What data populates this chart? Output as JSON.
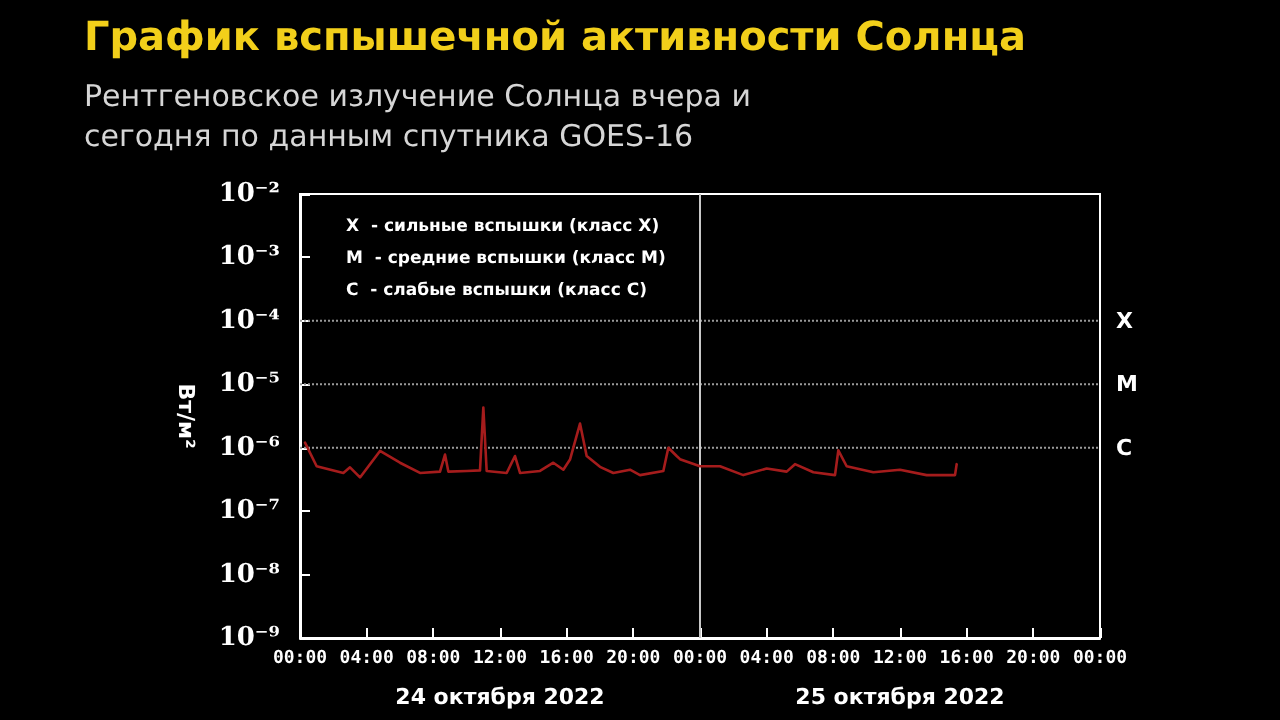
{
  "chart_data": {
    "type": "line",
    "title": "График вспышечной активности Солнца",
    "subtitle": "Рентгеновское излучение Солнца вчера и сегодня по данным спутника GOES-16",
    "ylabel": "Вт/м²",
    "log": "y",
    "grid": false,
    "marker": "none",
    "line_style": "solid",
    "annotations": [
      "X  - сильные вспышки (класс X)",
      "M  - средние вспышки (класс M)",
      "C  - слабые вспышки (класс C)",
      "24 октября 2022",
      "25 октября 2022"
    ],
    "xlim": [
      "2022-10-24T00:00",
      "2022-10-26T00:00"
    ],
    "ylim": [
      1e-09,
      0.01
    ],
    "xticks": [
      {
        "value": "2022-10-24T00:00",
        "label": "00:00"
      },
      {
        "value": "2022-10-24T04:00",
        "label": "04:00"
      },
      {
        "value": "2022-10-24T08:00",
        "label": "08:00"
      },
      {
        "value": "2022-10-24T12:00",
        "label": "12:00"
      },
      {
        "value": "2022-10-24T16:00",
        "label": "16:00"
      },
      {
        "value": "2022-10-24T20:00",
        "label": "20:00"
      },
      {
        "value": "2022-10-25T00:00",
        "label": "00:00"
      },
      {
        "value": "2022-10-25T04:00",
        "label": "04:00"
      },
      {
        "value": "2022-10-25T08:00",
        "label": "08:00"
      },
      {
        "value": "2022-10-25T12:00",
        "label": "12:00"
      },
      {
        "value": "2022-10-25T16:00",
        "label": "16:00"
      },
      {
        "value": "2022-10-25T20:00",
        "label": "20:00"
      },
      {
        "value": "2022-10-26T00:00",
        "label": "00:00"
      }
    ],
    "yticks": [
      {
        "value": 1e-09,
        "label": "10⁻⁹"
      },
      {
        "value": 1e-08,
        "label": "10⁻⁸"
      },
      {
        "value": 1e-07,
        "label": "10⁻⁷"
      },
      {
        "value": 1e-06,
        "label": "10⁻⁶"
      },
      {
        "value": 1e-05,
        "label": "10⁻⁵"
      },
      {
        "value": 0.0001,
        "label": "10⁻⁴"
      },
      {
        "value": 0.001,
        "label": "10⁻³"
      },
      {
        "value": 0.01,
        "label": "10⁻²"
      }
    ],
    "ref_lines": [
      {
        "axis": "y",
        "value": 0.0001,
        "label": "X",
        "color": "#9a9a9a",
        "line_style": "dotted"
      },
      {
        "axis": "y",
        "value": 1e-05,
        "label": "M",
        "color": "#9a9a9a",
        "line_style": "dotted"
      },
      {
        "axis": "y",
        "value": 1e-06,
        "label": "C",
        "color": "#9a9a9a",
        "line_style": "dotted"
      },
      {
        "axis": "x",
        "value": "2022-10-25T00:00",
        "color": "#c8c8c8",
        "line_style": "solid"
      }
    ],
    "series": [
      {
        "color": "#a51c1c",
        "x": [
          "2022-10-24T00:18",
          "2022-10-24T01:00",
          "2022-10-24T02:36",
          "2022-10-24T03:00",
          "2022-10-24T03:36",
          "2022-10-24T04:48",
          "2022-10-24T06:00",
          "2022-10-24T07:12",
          "2022-10-24T08:24",
          "2022-10-24T08:42",
          "2022-10-24T08:54",
          "2022-10-24T10:00",
          "2022-10-24T10:48",
          "2022-10-24T11:00",
          "2022-10-24T11:12",
          "2022-10-24T12:24",
          "2022-10-24T12:54",
          "2022-10-24T13:12",
          "2022-10-24T14:24",
          "2022-10-24T15:12",
          "2022-10-24T15:48",
          "2022-10-24T16:12",
          "2022-10-24T16:48",
          "2022-10-24T17:12",
          "2022-10-24T18:00",
          "2022-10-24T18:48",
          "2022-10-24T19:48",
          "2022-10-24T20:24",
          "2022-10-24T21:48",
          "2022-10-24T22:06",
          "2022-10-24T22:36",
          "2022-10-24T22:48",
          "2022-10-25T00:00",
          "2022-10-25T01:12",
          "2022-10-25T02:36",
          "2022-10-25T04:00",
          "2022-10-25T05:12",
          "2022-10-25T05:42",
          "2022-10-25T06:48",
          "2022-10-25T08:06",
          "2022-10-25T08:18",
          "2022-10-25T08:48",
          "2022-10-25T10:24",
          "2022-10-25T12:00",
          "2022-10-25T13:36",
          "2022-10-25T15:18",
          "2022-10-25T15:24"
        ],
        "values": [
          1.2e-06,
          5.1e-07,
          4e-07,
          4.9e-07,
          3.4e-07,
          8.9e-07,
          5.8e-07,
          4e-07,
          4.2e-07,
          7.8e-07,
          4.2e-07,
          4.3e-07,
          4.4e-07,
          4.3e-06,
          4.3e-07,
          4e-07,
          7.4e-07,
          4e-07,
          4.3e-07,
          5.8e-07,
          4.5e-07,
          6.5e-07,
          2.4e-06,
          7.4e-07,
          5e-07,
          4e-07,
          4.5e-07,
          3.7e-07,
          4.3e-07,
          1e-06,
          7.4e-07,
          6.6e-07,
          5.1e-07,
          5.1e-07,
          3.7e-07,
          4.7e-07,
          4.2e-07,
          5.5e-07,
          4.1e-07,
          3.7e-07,
          9.1e-07,
          5.1e-07,
          4.1e-07,
          4.5e-07,
          3.7e-07,
          3.7e-07,
          5.5e-07
        ]
      }
    ]
  }
}
